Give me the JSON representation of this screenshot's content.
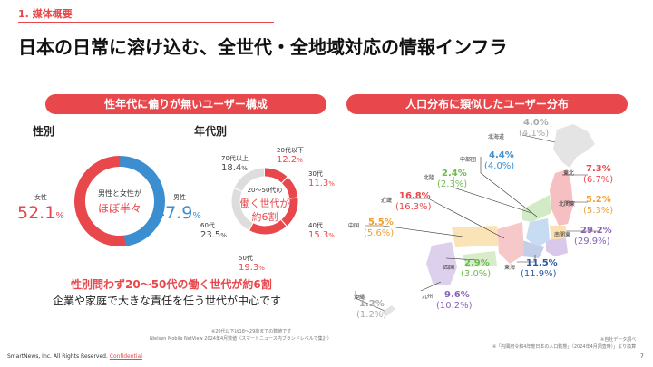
{
  "section": "1. 媒体概要",
  "title": "日本の日常に溶け込む、全世代・全地域対応の情報インフラ",
  "left_pill": "性年代に偏りが無いユーザー構成",
  "right_pill": "人口分布に類似したユーザー分布",
  "gender": {
    "header": "性別",
    "female_label": "女性",
    "female_value": "52.1",
    "male_label": "男性",
    "male_value": "47.9",
    "percent": "%",
    "center_line1": "男性と女性が",
    "center_line2": "ほぼ半々",
    "female_color": "#e8474c",
    "male_color": "#3b8fd1"
  },
  "age": {
    "header": "年代別",
    "center_line1": "20〜50代の",
    "center_line2": "働く世代が",
    "center_line3": "約6割",
    "segments": [
      {
        "label": "20代以下",
        "value": "12.2",
        "share": 12.2,
        "color": "#e8474c"
      },
      {
        "label": "30代",
        "value": "11.3",
        "share": 11.3,
        "color": "#e8474c"
      },
      {
        "label": "40代",
        "value": "15.3",
        "share": 15.3,
        "color": "#e8474c"
      },
      {
        "label": "50代",
        "value": "19.3",
        "share": 19.3,
        "color": "#e8474c"
      },
      {
        "label": "60代",
        "value": "23.5",
        "share": 23.5,
        "color": "#dddddd"
      },
      {
        "label": "70代以上",
        "value": "18.4",
        "share": 18.4,
        "color": "#dddddd"
      }
    ]
  },
  "conclusion1": "性別問わず20〜50代の働く世代が約6割",
  "conclusion2": "企業や家庭で大きな責任を任う世代が中心です",
  "left_note1": "※20代以下は18〜29歳までの数値です",
  "left_note2": "Nielsen Mobile NetView 2024年4月数値（スマートニュース内ブランドレベルで集計）",
  "right_note1": "※自社データ調べ",
  "right_note2": "※「内閣府令和4年度日本の人口動態」（2024年4月調査時）」より換算",
  "regions": [
    {
      "name": "北海道",
      "cur": "4.0%",
      "prev": "(4.1%)",
      "color": "#aaaaaa"
    },
    {
      "name": "中部圏",
      "cur": "4.4%",
      "prev": "(4.0%)",
      "color": "#3b8fd1"
    },
    {
      "name": "北陸",
      "cur": "2.4%",
      "prev": "(2.3%)",
      "color": "#6dbb4e"
    },
    {
      "name": "近畿",
      "cur": "16.8%",
      "prev": "(16.3%)",
      "color": "#e8474c"
    },
    {
      "name": "中国",
      "cur": "5.5%",
      "prev": "(5.6%)",
      "color": "#f0a030"
    },
    {
      "name": "四国",
      "cur": "2.9%",
      "prev": "(3.0%)",
      "color": "#6dbb4e"
    },
    {
      "name": "九州",
      "cur": "9.6%",
      "prev": "(10.2%)",
      "color": "#8a63b8"
    },
    {
      "name": "沖縄",
      "cur": "1.2%",
      "prev": "(1.2%)",
      "color": "#aaaaaa"
    },
    {
      "name": "東北",
      "cur": "7.3%",
      "prev": "(6.7%)",
      "color": "#e8474c"
    },
    {
      "name": "北関東",
      "cur": "5.2%",
      "prev": "(5.3%)",
      "color": "#f0a030"
    },
    {
      "name": "南関東",
      "cur": "29.2%",
      "prev": "(29.9%)",
      "color": "#8a63b8"
    },
    {
      "name": "東海",
      "cur": "11.5%",
      "prev": "(11.9%)",
      "color": "#2a5aa8"
    }
  ],
  "footer": "SmartNews, Inc. All Rights Reserved.",
  "footer_conf": "Confidential",
  "page_number": "7"
}
